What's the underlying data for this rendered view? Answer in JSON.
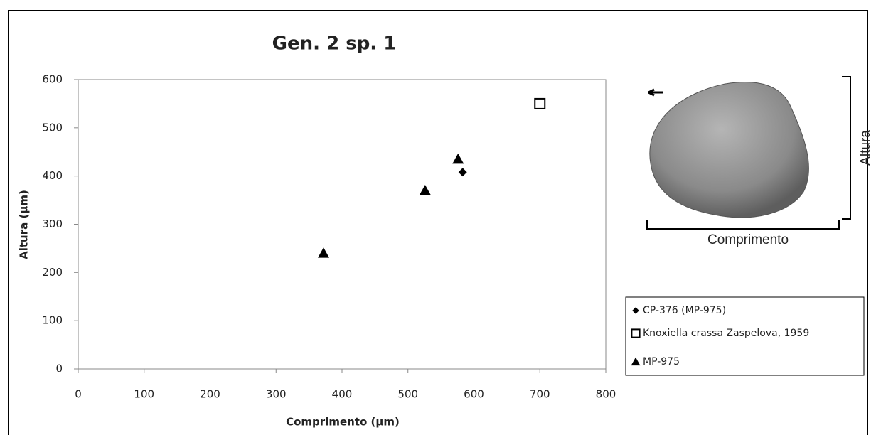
{
  "chart_data": {
    "type": "scatter",
    "title": "Gen. 2 sp. 1",
    "x_label": "Comprimento (µm)",
    "y_label": "Altura (µm)",
    "xlim": [
      0,
      800
    ],
    "xticks": [
      0,
      100,
      200,
      300,
      400,
      500,
      600,
      700,
      800
    ],
    "ylim": [
      0,
      600
    ],
    "yticks": [
      0,
      100,
      200,
      300,
      400,
      500,
      600
    ],
    "grid": false,
    "legend": "right",
    "series": [
      {
        "name": "CP-376 (MP-975)",
        "marker": "diamond",
        "color": "#000000",
        "x": [
          583
        ],
        "y": [
          408
        ]
      },
      {
        "name": "Knoxiella crassa Zaspelova, 1959",
        "marker": "square-open",
        "color": "#000000",
        "x": [
          700
        ],
        "y": [
          550
        ]
      },
      {
        "name": "MP-975",
        "marker": "triangle",
        "color": "#000000",
        "x": [
          372,
          526,
          576
        ],
        "y": [
          240,
          370,
          435
        ]
      }
    ]
  },
  "inset": {
    "width_label": "Comprimento",
    "height_label": "Altura"
  }
}
